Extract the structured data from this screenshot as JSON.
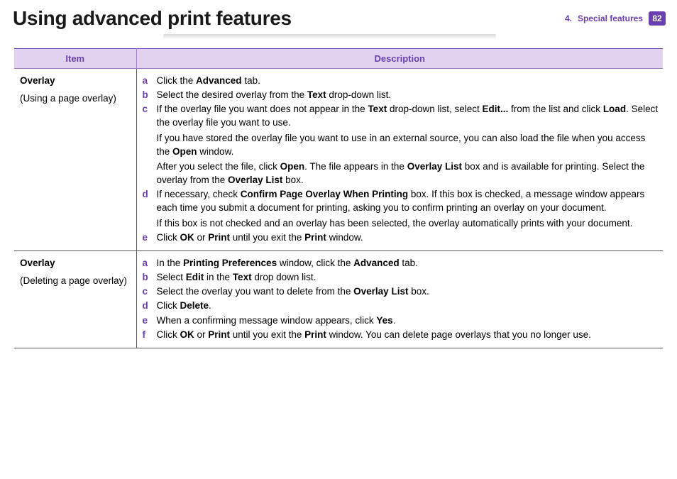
{
  "colors": {
    "accent": "#6a3fb0",
    "header_bg": "#e1d2f0",
    "text": "#000000",
    "page_bg": "#ffffff",
    "divider": "#555555"
  },
  "header": {
    "title": "Using advanced print features",
    "chapter_num": "4.",
    "chapter_label": "Special features",
    "page_number": "82"
  },
  "table": {
    "columns": {
      "item": "Item",
      "description": "Description"
    },
    "rows": [
      {
        "item_title": "Overlay",
        "item_sub": "(Using a page overlay)",
        "steps": [
          {
            "letter": "a",
            "html": "Click the <b>Advanced</b> tab."
          },
          {
            "letter": "b",
            "html": "Select the desired overlay from the <b>Text</b> drop-down list."
          },
          {
            "letter": "c",
            "html": "If the overlay file you want does not appear in the <b>Text</b> drop-down list, select <b>Edit...</b> from the list and click <b>Load</b>. Select the overlay file you want to use.",
            "cont": [
              "If you have stored the overlay file you want to use in an external source, you can also load the file when you access the <b>Open</b> window.",
              "After you select the file, click <b>Open</b>. The file appears in the <b>Overlay List</b> box and is available for printing. Select the overlay from the <b>Overlay List</b> box."
            ]
          },
          {
            "letter": "d",
            "html": "If necessary, check <b>Confirm Page Overlay When Printing</b> box. If this box is checked, a message window appears each time you submit a document for printing, asking you to confirm printing an overlay on your document.",
            "cont": [
              "If this box is not checked and an overlay has been selected, the overlay automatically prints with your document."
            ]
          },
          {
            "letter": "e",
            "html": "Click <b>OK</b> or <b>Print</b> until you exit the <b>Print</b> window."
          }
        ]
      },
      {
        "item_title": "Overlay",
        "item_sub": "(Deleting a page overlay)",
        "steps": [
          {
            "letter": "a",
            "html": "In the <b>Printing Preferences</b> window, click the <b>Advanced</b> tab."
          },
          {
            "letter": "b",
            "html": "Select <b>Edit</b> in the <b>Text</b> drop down list."
          },
          {
            "letter": "c",
            "html": "Select the overlay you want to delete from the <b>Overlay List</b> box."
          },
          {
            "letter": "d",
            "html": "Click <b>Delete</b>."
          },
          {
            "letter": "e",
            "html": "When a confirming message window appears, click <b>Yes</b>."
          },
          {
            "letter": "f",
            "html": "Click <b>OK</b> or <b>Print</b> until you exit the <b>Print</b> window. You can delete page overlays that you no longer use."
          }
        ]
      }
    ]
  }
}
